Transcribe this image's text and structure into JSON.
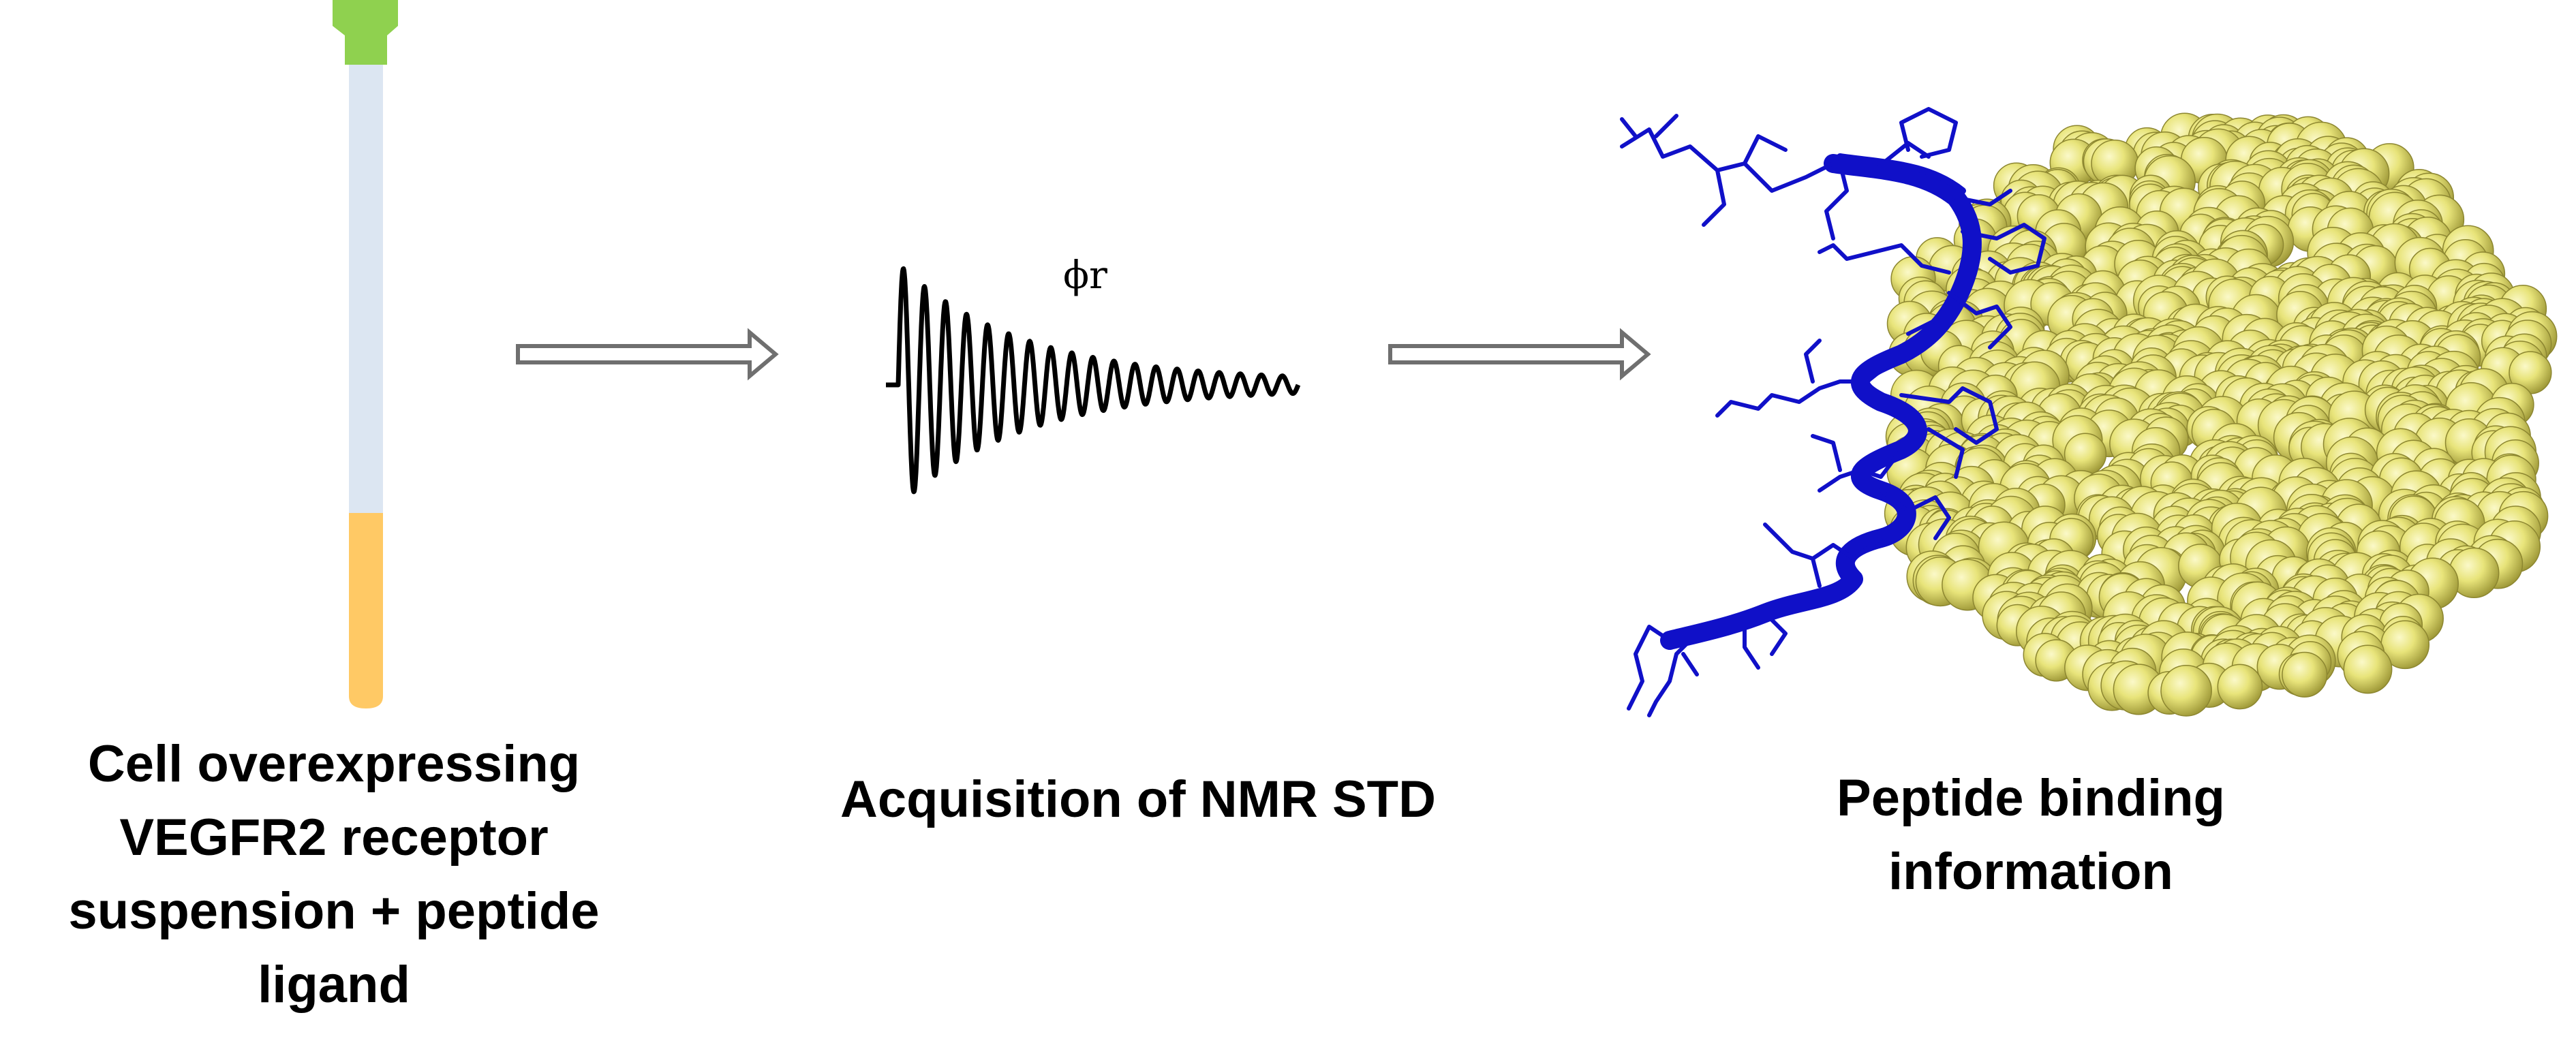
{
  "steps": [
    {
      "id": "sample",
      "caption_lines": [
        "Cell overexpressing",
        "VEGFR2 receptor",
        "suspension + peptide",
        "ligand"
      ]
    },
    {
      "id": "acquisition",
      "caption_lines": [
        "Acquisition of NMR STD"
      ],
      "fid_symbol": "ϕr"
    },
    {
      "id": "result",
      "caption_lines": [
        "Peptide binding",
        "information"
      ]
    }
  ],
  "colors": {
    "tube_cap": "#8fd14f",
    "tube_upper": "#dce6f2",
    "tube_lower": "#ffc965",
    "arrow_stroke": "#6f6f6f",
    "fid_line": "#000000",
    "peptide": "#1010c8",
    "protein_spheres": "#e8e47a"
  },
  "icons": [
    "nmr-tube-icon",
    "right-arrow-icon",
    "fid-signal-icon",
    "peptide-ribbon-icon",
    "protein-sphere-icon"
  ]
}
